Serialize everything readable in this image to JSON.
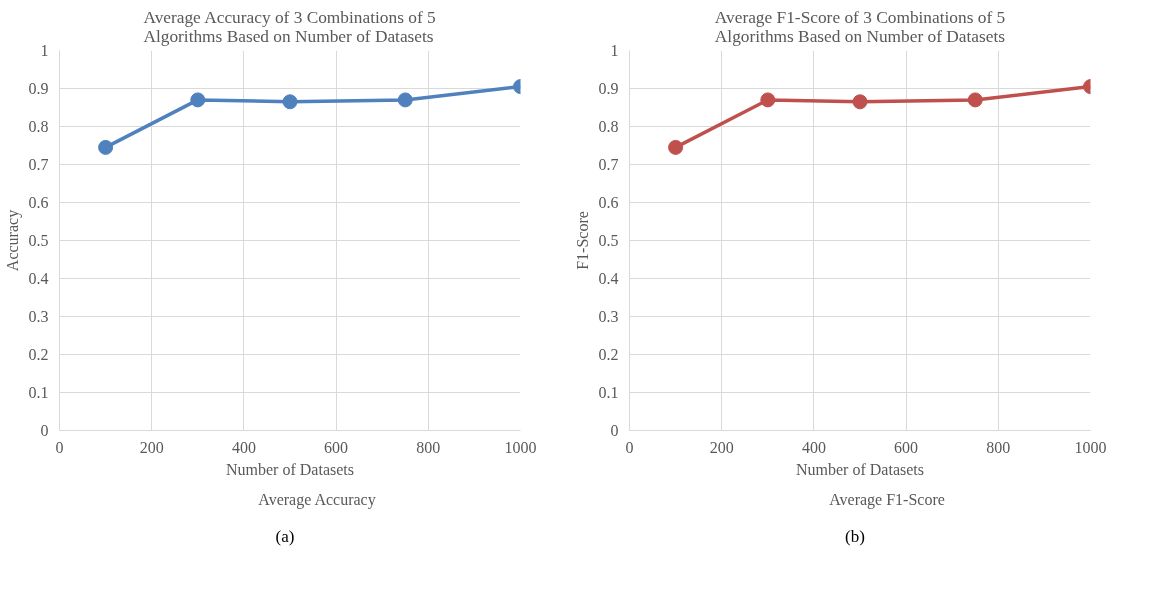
{
  "chart_data": [
    {
      "type": "line",
      "title": "Average Accuracy of 3 Combinations of 5 Algorithms Based on Number of Datasets",
      "xlabel": "Number of Datasets",
      "ylabel": "Accuracy",
      "x": [
        100,
        300,
        500,
        750,
        1000
      ],
      "series": [
        {
          "name": "Average Accuracy",
          "color": "#4f81bd",
          "values": [
            0.745,
            0.87,
            0.865,
            0.87,
            0.905
          ]
        }
      ],
      "xlim": [
        0,
        1000
      ],
      "xticks": [
        0,
        200,
        400,
        600,
        800,
        1000
      ],
      "ylim": [
        0,
        1
      ],
      "yticks": [
        0,
        0.1,
        0.2,
        0.3,
        0.4,
        0.5,
        0.6,
        0.7,
        0.8,
        0.9,
        1
      ],
      "grid": true,
      "legend": "bottom",
      "marker": "circle",
      "annotations": [
        "(a)"
      ]
    },
    {
      "type": "line",
      "title": "Average F1-Score of 3 Combinations of 5 Algorithms Based on Number of Datasets",
      "xlabel": "Number of Datasets",
      "ylabel": "F1-Score",
      "x": [
        100,
        300,
        500,
        750,
        1000
      ],
      "series": [
        {
          "name": "Average F1-Score",
          "color": "#c0504d",
          "values": [
            0.745,
            0.87,
            0.865,
            0.87,
            0.905
          ]
        }
      ],
      "xlim": [
        0,
        1000
      ],
      "xticks": [
        0,
        200,
        400,
        600,
        800,
        1000
      ],
      "ylim": [
        0,
        1
      ],
      "yticks": [
        0,
        0.1,
        0.2,
        0.3,
        0.4,
        0.5,
        0.6,
        0.7,
        0.8,
        0.9,
        1
      ],
      "grid": true,
      "legend": "bottom",
      "marker": "circle",
      "annotations": [
        "(b)"
      ]
    }
  ]
}
